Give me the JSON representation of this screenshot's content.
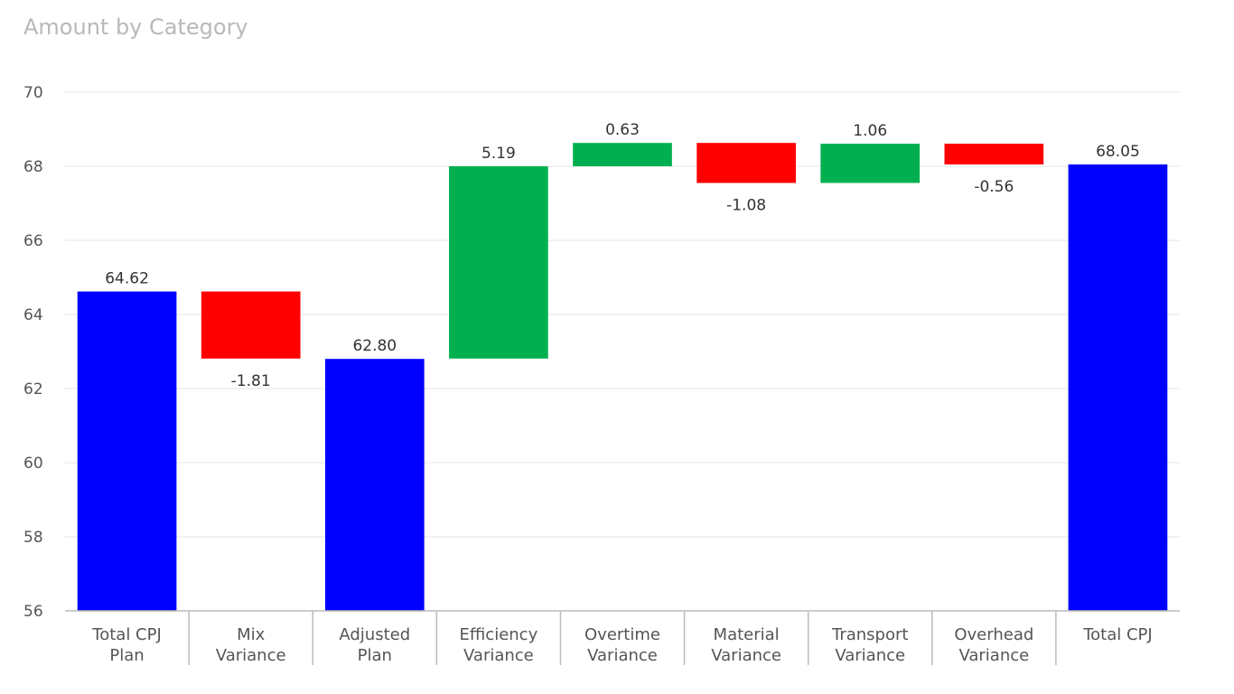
{
  "title": "Amount by Category",
  "colors": {
    "total": "#0000ff",
    "increase": "#00b050",
    "decrease": "#ff0000",
    "grid": "#eeeeee",
    "axis": "#bbbbbb"
  },
  "chart_data": {
    "type": "bar",
    "subtype": "waterfall",
    "title": "Amount by Category",
    "ylim": [
      56,
      70
    ],
    "yticks": [
      56,
      58,
      60,
      62,
      64,
      66,
      68,
      70
    ],
    "categories": [
      [
        "Total CPJ",
        "Plan"
      ],
      [
        "Mix",
        "Variance"
      ],
      [
        "Adjusted",
        "Plan"
      ],
      [
        "Efficiency",
        "Variance"
      ],
      [
        "Overtime",
        "Variance"
      ],
      [
        "Material",
        "Variance"
      ],
      [
        "Transport",
        "Variance"
      ],
      [
        "Overhead",
        "Variance"
      ],
      [
        "Total CPJ"
      ]
    ],
    "bars": [
      {
        "kind": "total",
        "start": 56,
        "end": 64.62,
        "label": "64.62"
      },
      {
        "kind": "decrease",
        "start": 64.62,
        "end": 62.81,
        "label": "-1.81"
      },
      {
        "kind": "total",
        "start": 56,
        "end": 62.8,
        "label": "62.80"
      },
      {
        "kind": "increase",
        "start": 62.81,
        "end": 68.0,
        "label": "5.19"
      },
      {
        "kind": "increase",
        "start": 68.0,
        "end": 68.63,
        "label": "0.63"
      },
      {
        "kind": "decrease",
        "start": 68.63,
        "end": 67.55,
        "label": "-1.08"
      },
      {
        "kind": "increase",
        "start": 67.55,
        "end": 68.61,
        "label": "1.06"
      },
      {
        "kind": "decrease",
        "start": 68.61,
        "end": 68.05,
        "label": "-0.56"
      },
      {
        "kind": "total",
        "start": 56,
        "end": 68.05,
        "label": "68.05"
      }
    ]
  }
}
